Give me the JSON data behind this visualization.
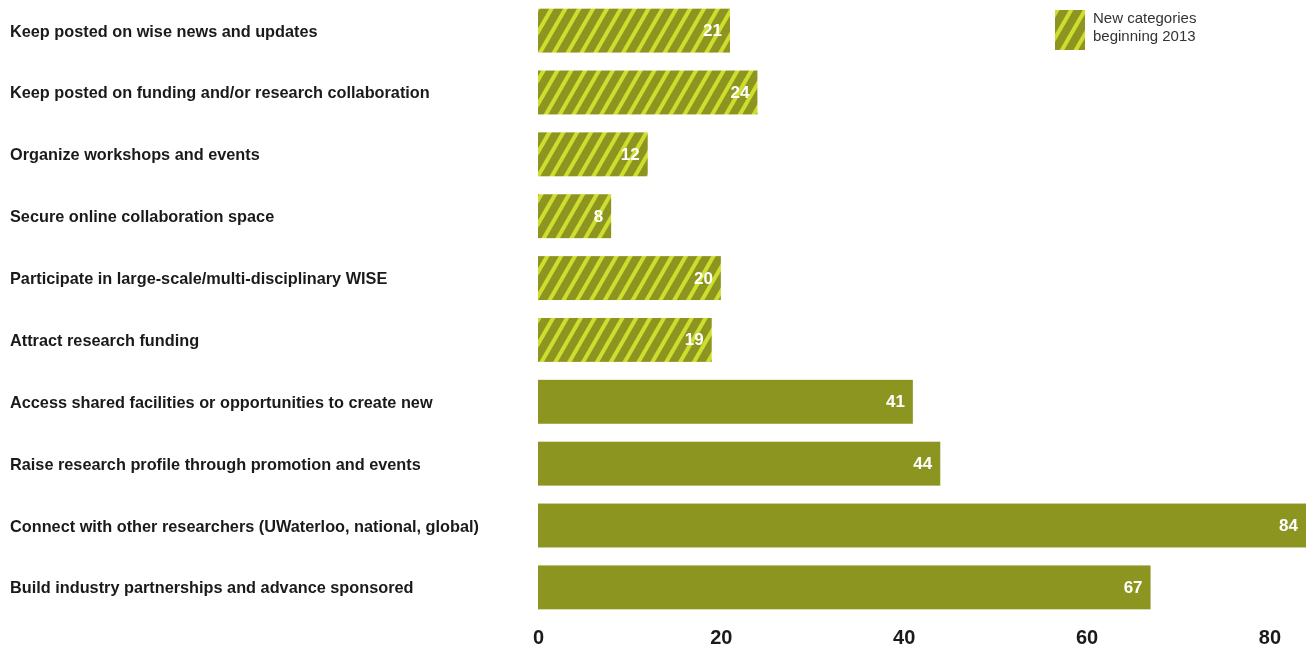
{
  "chart_data": {
    "type": "bar",
    "orientation": "horizontal",
    "categories": [
      "Keep posted on wise news and updates",
      "Keep posted on funding and/or research collaboration",
      "Organize workshops and events",
      "Secure online collaboration space",
      "Participate in large-scale/multi-disciplinary WISE",
      "Attract research funding",
      "Access shared facilities or opportunities to create new",
      "Raise research profile through promotion and events",
      "Connect with other researchers (UWaterloo, national, global)",
      "Build industry partnerships and advance sponsored"
    ],
    "series": [
      {
        "name": "New categories beginning 2013",
        "color": "#8c9520",
        "values": [
          21,
          24,
          12,
          8,
          20,
          19,
          null,
          null,
          null,
          null
        ]
      },
      {
        "color": "#8c9520",
        "values": [
          null,
          null,
          null,
          null,
          null,
          null,
          41,
          44,
          84,
          67
        ]
      }
    ],
    "xlim": [
      0,
      84
    ],
    "xticks": [
      0,
      20,
      40,
      60,
      80
    ],
    "data_labels": true,
    "legend": "top right",
    "grid": false
  }
}
